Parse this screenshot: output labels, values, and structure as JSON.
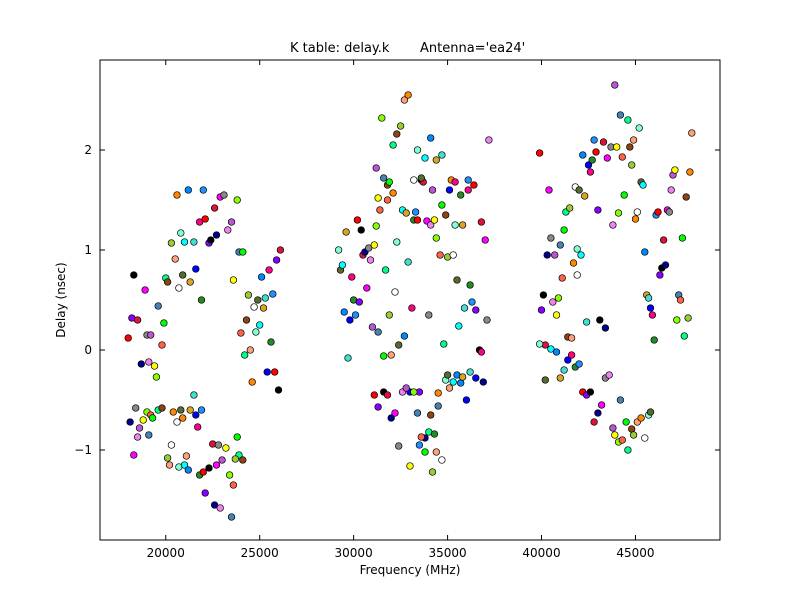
{
  "chart_data": {
    "type": "scatter",
    "title_left": "K table: delay.k",
    "title_right": "Antenna='ea24'",
    "xlabel": "Frequency (MHz)",
    "ylabel": "Delay (nsec)",
    "xlim": [
      16500,
      49500
    ],
    "ylim": [
      -1.9,
      2.9
    ],
    "xticks": [
      20000,
      25000,
      30000,
      35000,
      40000,
      45000
    ],
    "xtick_labels": [
      "20000",
      "25000",
      "30000",
      "35000",
      "40000",
      "45000"
    ],
    "yticks": [
      -1,
      0,
      1,
      2
    ],
    "ytick_labels": [
      "−1",
      "0",
      "1",
      "2"
    ],
    "grid": false,
    "legend": "none",
    "palette": [
      "#ff0000",
      "#00ff00",
      "#0000ff",
      "#ffff00",
      "#00ffff",
      "#ff00ff",
      "#ff8800",
      "#8800ff",
      "#00ff88",
      "#ff0088",
      "#88ff00",
      "#0088ff",
      "#888888",
      "#ffffff",
      "#000000",
      "#8b4513",
      "#228b22",
      "#4682b4",
      "#daa520",
      "#ee82ee",
      "#7fffd4",
      "#dc143c",
      "#9acd32",
      "#1e90ff",
      "#ff6347",
      "#40e0d0",
      "#ba55d3",
      "#556b2f",
      "#00008b",
      "#ffa07a"
    ],
    "points": [
      [
        18000,
        0.12
      ],
      [
        18200,
        0.32
      ],
      [
        18300,
        0.75
      ],
      [
        18500,
        0.3
      ],
      [
        18700,
        -0.14
      ],
      [
        18900,
        0.6
      ],
      [
        19000,
        0.15
      ],
      [
        19100,
        -0.12
      ],
      [
        19200,
        0.15
      ],
      [
        19400,
        -0.16
      ],
      [
        19500,
        -0.27
      ],
      [
        19600,
        0.44
      ],
      [
        19800,
        0.05
      ],
      [
        19900,
        0.27
      ],
      [
        20000,
        0.72
      ],
      [
        20100,
        0.68
      ],
      [
        20300,
        1.07
      ],
      [
        20500,
        0.91
      ],
      [
        20600,
        1.55
      ],
      [
        20700,
        0.62
      ],
      [
        20800,
        1.17
      ],
      [
        20900,
        0.75
      ],
      [
        21000,
        1.08
      ],
      [
        21200,
        1.6
      ],
      [
        21300,
        0.68
      ],
      [
        21500,
        1.08
      ],
      [
        21600,
        0.81
      ],
      [
        21800,
        1.28
      ],
      [
        21900,
        0.5
      ],
      [
        22000,
        1.6
      ],
      [
        22100,
        1.31
      ],
      [
        22300,
        1.07
      ],
      [
        22400,
        1.1
      ],
      [
        22600,
        1.42
      ],
      [
        22700,
        1.15
      ],
      [
        22900,
        1.53
      ],
      [
        23100,
        1.55
      ],
      [
        23300,
        1.2
      ],
      [
        23500,
        1.28
      ],
      [
        23600,
        0.7
      ],
      [
        23800,
        1.5
      ],
      [
        23900,
        0.98
      ],
      [
        24000,
        0.17
      ],
      [
        24100,
        0.98
      ],
      [
        24200,
        -0.05
      ],
      [
        24300,
        0.3
      ],
      [
        24400,
        0.55
      ],
      [
        24500,
        0.0
      ],
      [
        24600,
        -0.32
      ],
      [
        24700,
        0.43
      ],
      [
        24800,
        0.18
      ],
      [
        24900,
        0.5
      ],
      [
        25000,
        0.25
      ],
      [
        25100,
        0.73
      ],
      [
        25200,
        0.42
      ],
      [
        25300,
        0.52
      ],
      [
        25400,
        -0.22
      ],
      [
        25500,
        0.8
      ],
      [
        25600,
        0.08
      ],
      [
        25700,
        0.56
      ],
      [
        25800,
        -0.22
      ],
      [
        25900,
        0.9
      ],
      [
        26000,
        -0.4
      ],
      [
        26100,
        1.0
      ],
      [
        18100,
        -0.72
      ],
      [
        18300,
        -1.05
      ],
      [
        18400,
        -0.58
      ],
      [
        18500,
        -0.87
      ],
      [
        18600,
        -0.78
      ],
      [
        18800,
        -0.7
      ],
      [
        19000,
        -0.62
      ],
      [
        19100,
        -0.85
      ],
      [
        19200,
        -0.65
      ],
      [
        19300,
        -0.68
      ],
      [
        19600,
        -0.6
      ],
      [
        19800,
        -0.58
      ],
      [
        20100,
        -1.08
      ],
      [
        20200,
        -1.15
      ],
      [
        20400,
        -0.62
      ],
      [
        20600,
        -0.72
      ],
      [
        20700,
        -1.17
      ],
      [
        20800,
        -0.6
      ],
      [
        21000,
        -1.15
      ],
      [
        21200,
        -1.2
      ],
      [
        21300,
        -0.6
      ],
      [
        21500,
        -0.45
      ],
      [
        21600,
        -0.65
      ],
      [
        21700,
        -0.77
      ],
      [
        21800,
        -1.25
      ],
      [
        21900,
        -0.6
      ],
      [
        22000,
        -1.22
      ],
      [
        22100,
        -1.43
      ],
      [
        22300,
        -1.18
      ],
      [
        22500,
        -0.94
      ],
      [
        22600,
        -1.55
      ],
      [
        22700,
        -1.15
      ],
      [
        22800,
        -0.95
      ],
      [
        22900,
        -1.58
      ],
      [
        23000,
        -1.1
      ],
      [
        23200,
        -0.98
      ],
      [
        23400,
        -1.25
      ],
      [
        23500,
        -1.67
      ],
      [
        23600,
        -1.35
      ],
      [
        23800,
        -0.87
      ],
      [
        23900,
        -1.05
      ],
      [
        24100,
        -1.1
      ],
      [
        23700,
        -1.09
      ],
      [
        21100,
        -1.06
      ],
      [
        20900,
        -0.68
      ],
      [
        20300,
        -0.95
      ],
      [
        29200,
        1.0
      ],
      [
        29300,
        0.8
      ],
      [
        29400,
        0.85
      ],
      [
        29500,
        0.38
      ],
      [
        29600,
        1.18
      ],
      [
        29700,
        -0.08
      ],
      [
        29800,
        0.3
      ],
      [
        29900,
        0.73
      ],
      [
        30000,
        0.5
      ],
      [
        30100,
        0.35
      ],
      [
        30200,
        1.3
      ],
      [
        30300,
        0.48
      ],
      [
        30400,
        1.2
      ],
      [
        30500,
        0.95
      ],
      [
        30600,
        0.98
      ],
      [
        30700,
        0.62
      ],
      [
        30800,
        1.02
      ],
      [
        30900,
        0.9
      ],
      [
        31000,
        0.23
      ],
      [
        31100,
        1.05
      ],
      [
        31200,
        1.24
      ],
      [
        31300,
        0.18
      ],
      [
        31400,
        1.4
      ],
      [
        31600,
        -0.06
      ],
      [
        31700,
        0.8
      ],
      [
        31800,
        1.65
      ],
      [
        31900,
        0.35
      ],
      [
        32000,
        -0.05
      ],
      [
        32100,
        1.57
      ],
      [
        32200,
        0.58
      ],
      [
        32300,
        1.08
      ],
      [
        32400,
        0.05
      ],
      [
        32600,
        1.4
      ],
      [
        32700,
        0.14
      ],
      [
        32800,
        1.37
      ],
      [
        32900,
        0.88
      ],
      [
        33000,
        -0.42
      ],
      [
        33100,
        0.42
      ],
      [
        33200,
        1.3
      ],
      [
        33300,
        1.38
      ],
      [
        33400,
        1.3
      ],
      [
        33500,
        -0.42
      ],
      [
        33600,
        1.7
      ],
      [
        33700,
        1.68
      ],
      [
        33800,
        -0.88
      ],
      [
        33900,
        1.29
      ],
      [
        34000,
        0.35
      ],
      [
        34100,
        1.25
      ],
      [
        34200,
        1.6
      ],
      [
        34300,
        1.3
      ],
      [
        34400,
        1.12
      ],
      [
        34500,
        -0.56
      ],
      [
        34600,
        0.95
      ],
      [
        34700,
        1.45
      ],
      [
        34800,
        0.06
      ],
      [
        34900,
        1.35
      ],
      [
        35000,
        0.93
      ],
      [
        35100,
        -0.38
      ],
      [
        35200,
        1.7
      ],
      [
        35300,
        0.95
      ],
      [
        35400,
        1.25
      ],
      [
        35500,
        0.7
      ],
      [
        35600,
        0.24
      ],
      [
        35700,
        -0.33
      ],
      [
        35800,
        1.25
      ],
      [
        35900,
        0.42
      ],
      [
        36000,
        -0.5
      ],
      [
        36100,
        1.6
      ],
      [
        36200,
        0.65
      ],
      [
        36300,
        0.48
      ],
      [
        36400,
        1.65
      ],
      [
        36500,
        0.4
      ],
      [
        36700,
        0.0
      ],
      [
        36800,
        1.28
      ],
      [
        36900,
        -0.32
      ],
      [
        37000,
        1.1
      ],
      [
        37100,
        0.3
      ],
      [
        37200,
        2.1
      ],
      [
        31200,
        1.82
      ],
      [
        31300,
        1.52
      ],
      [
        31500,
        2.32
      ],
      [
        31600,
        1.72
      ],
      [
        31800,
        1.5
      ],
      [
        31900,
        1.68
      ],
      [
        32100,
        2.05
      ],
      [
        32300,
        2.16
      ],
      [
        32500,
        2.24
      ],
      [
        32700,
        2.5
      ],
      [
        32900,
        2.55
      ],
      [
        33200,
        1.7
      ],
      [
        33400,
        2.0
      ],
      [
        33600,
        1.72
      ],
      [
        33800,
        1.92
      ],
      [
        34100,
        2.12
      ],
      [
        34400,
        1.9
      ],
      [
        34700,
        1.95
      ],
      [
        35100,
        1.6
      ],
      [
        35400,
        1.68
      ],
      [
        35700,
        1.55
      ],
      [
        36100,
        1.7
      ],
      [
        31100,
        -0.45
      ],
      [
        31300,
        -0.57
      ],
      [
        31600,
        -0.42
      ],
      [
        31800,
        -0.45
      ],
      [
        32000,
        -0.68
      ],
      [
        32200,
        -0.63
      ],
      [
        32400,
        -0.96
      ],
      [
        32600,
        -0.42
      ],
      [
        32800,
        -0.38
      ],
      [
        33000,
        -1.16
      ],
      [
        33200,
        -0.42
      ],
      [
        33400,
        -0.63
      ],
      [
        33600,
        -0.87
      ],
      [
        33800,
        -1.02
      ],
      [
        34000,
        -0.82
      ],
      [
        34100,
        -0.65
      ],
      [
        34200,
        -1.22
      ],
      [
        34400,
        -1.02
      ],
      [
        34500,
        -0.43
      ],
      [
        34700,
        -1.1
      ],
      [
        34900,
        -0.3
      ],
      [
        35000,
        -0.25
      ],
      [
        35300,
        -0.32
      ],
      [
        35500,
        -0.25
      ],
      [
        35800,
        -0.27
      ],
      [
        36200,
        -0.22
      ],
      [
        36500,
        -0.28
      ],
      [
        36800,
        -0.02
      ],
      [
        34300,
        -0.84
      ],
      [
        33500,
        -0.95
      ],
      [
        39900,
        1.97
      ],
      [
        40000,
        0.4
      ],
      [
        40100,
        0.55
      ],
      [
        40200,
        0.05
      ],
      [
        40300,
        0.95
      ],
      [
        40400,
        1.6
      ],
      [
        40500,
        1.12
      ],
      [
        40600,
        0.48
      ],
      [
        40700,
        0.95
      ],
      [
        40800,
        0.35
      ],
      [
        40900,
        0.52
      ],
      [
        41000,
        1.05
      ],
      [
        41100,
        0.72
      ],
      [
        41200,
        1.2
      ],
      [
        41300,
        1.38
      ],
      [
        41400,
        0.13
      ],
      [
        41500,
        1.42
      ],
      [
        41600,
        0.12
      ],
      [
        41700,
        0.87
      ],
      [
        41800,
        1.63
      ],
      [
        41900,
        1.01
      ],
      [
        42000,
        1.6
      ],
      [
        42100,
        0.95
      ],
      [
        42200,
        1.95
      ],
      [
        42300,
        1.54
      ],
      [
        42400,
        0.28
      ],
      [
        42500,
        1.85
      ],
      [
        42600,
        1.78
      ],
      [
        42700,
        1.9
      ],
      [
        42800,
        2.1
      ],
      [
        42900,
        1.98
      ],
      [
        43000,
        1.4
      ],
      [
        43100,
        0.3
      ],
      [
        43300,
        2.08
      ],
      [
        43400,
        0.22
      ],
      [
        43500,
        1.92
      ],
      [
        43700,
        2.03
      ],
      [
        43800,
        1.25
      ],
      [
        43900,
        2.65
      ],
      [
        44000,
        2.03
      ],
      [
        44100,
        1.37
      ],
      [
        44200,
        2.35
      ],
      [
        44300,
        1.93
      ],
      [
        44400,
        1.55
      ],
      [
        44600,
        2.3
      ],
      [
        44700,
        2.03
      ],
      [
        44800,
        1.85
      ],
      [
        44900,
        2.1
      ],
      [
        45000,
        1.31
      ],
      [
        45100,
        1.38
      ],
      [
        45200,
        2.22
      ],
      [
        45300,
        1.68
      ],
      [
        45400,
        1.65
      ],
      [
        45500,
        0.98
      ],
      [
        45600,
        0.55
      ],
      [
        45700,
        0.52
      ],
      [
        45800,
        0.42
      ],
      [
        45900,
        0.35
      ],
      [
        46000,
        0.1
      ],
      [
        46100,
        1.35
      ],
      [
        46200,
        1.38
      ],
      [
        46300,
        0.75
      ],
      [
        46400,
        0.82
      ],
      [
        46500,
        1.1
      ],
      [
        46600,
        0.85
      ],
      [
        46700,
        1.4
      ],
      [
        46800,
        1.38
      ],
      [
        46900,
        1.6
      ],
      [
        47000,
        1.75
      ],
      [
        47100,
        1.8
      ],
      [
        47200,
        0.3
      ],
      [
        47300,
        0.55
      ],
      [
        47400,
        0.5
      ],
      [
        47500,
        1.12
      ],
      [
        47600,
        0.14
      ],
      [
        47700,
        1.53
      ],
      [
        47800,
        0.32
      ],
      [
        48000,
        2.17
      ],
      [
        47900,
        1.78
      ],
      [
        41900,
        0.75
      ],
      [
        39900,
        0.06
      ],
      [
        40200,
        -0.3
      ],
      [
        40500,
        0.01
      ],
      [
        40800,
        -0.02
      ],
      [
        41000,
        -0.28
      ],
      [
        41200,
        -0.2
      ],
      [
        41400,
        -0.1
      ],
      [
        41600,
        -0.05
      ],
      [
        41800,
        -0.17
      ],
      [
        42000,
        -0.14
      ],
      [
        42200,
        -0.42
      ],
      [
        42400,
        -0.45
      ],
      [
        42600,
        -0.42
      ],
      [
        42800,
        -0.72
      ],
      [
        43000,
        -0.63
      ],
      [
        43200,
        -0.55
      ],
      [
        43400,
        -0.28
      ],
      [
        43600,
        -0.25
      ],
      [
        43800,
        -0.78
      ],
      [
        43900,
        -0.85
      ],
      [
        44100,
        -0.92
      ],
      [
        44200,
        -0.5
      ],
      [
        44300,
        -0.9
      ],
      [
        44500,
        -0.72
      ],
      [
        44600,
        -1.0
      ],
      [
        44800,
        -0.79
      ],
      [
        44900,
        -0.85
      ],
      [
        45100,
        -0.72
      ],
      [
        45300,
        -0.68
      ],
      [
        45500,
        -0.88
      ],
      [
        45700,
        -0.65
      ],
      [
        45800,
        -0.62
      ]
    ]
  }
}
